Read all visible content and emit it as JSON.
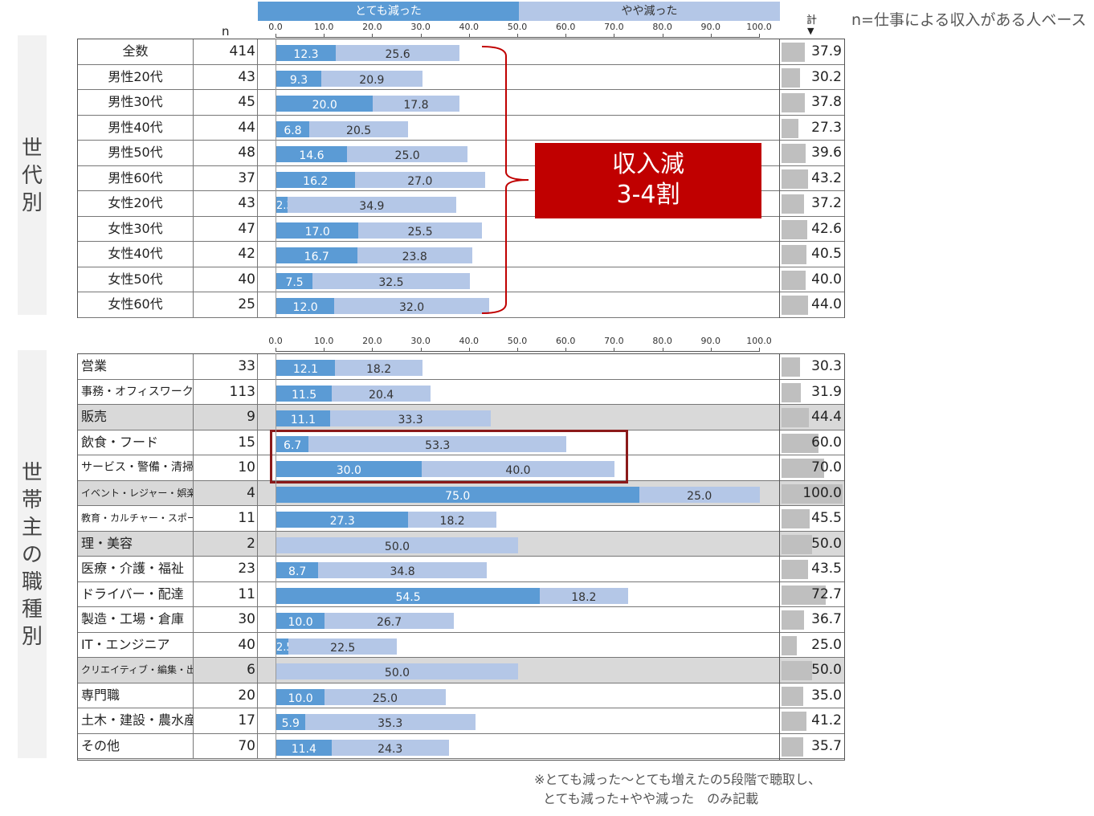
{
  "legend": {
    "series1": "とても減った",
    "series2": "やや減った",
    "color1": "#5b9bd5",
    "color2": "#b4c7e7"
  },
  "header": {
    "n_label": "n",
    "total_label": "計",
    "total_marker": "▼",
    "base_note": "n=仕事による収入がある人ベース"
  },
  "section1": {
    "label": "世代別"
  },
  "section2": {
    "label": "世帯主の職種別"
  },
  "callout": {
    "line1": "収入減",
    "line2": "3-4割"
  },
  "footnote": {
    "line1": "※とても減った～とても増えたの5段階で聴取し、",
    "line2": "とても減った+やや減った　のみ記載"
  },
  "chart_data": [
    {
      "type": "bar",
      "stacked": true,
      "orientation": "horizontal",
      "xlim": [
        0,
        100
      ],
      "xticks": [
        "0.0",
        "10.0",
        "20.0",
        "30.0",
        "40.0",
        "50.0",
        "60.0",
        "70.0",
        "80.0",
        "90.0",
        "100.0"
      ],
      "categories": [
        "全数",
        "男性20代",
        "男性30代",
        "男性40代",
        "男性50代",
        "男性60代",
        "女性20代",
        "女性30代",
        "女性40代",
        "女性50代",
        "女性60代"
      ],
      "n": [
        414,
        43,
        45,
        44,
        48,
        37,
        43,
        47,
        42,
        40,
        25
      ],
      "series": [
        {
          "name": "とても減った",
          "values": [
            12.3,
            9.3,
            20.0,
            6.8,
            14.6,
            16.2,
            2.3,
            17.0,
            16.7,
            7.5,
            12.0
          ]
        },
        {
          "name": "やや減った",
          "values": [
            25.6,
            20.9,
            17.8,
            20.5,
            25.0,
            27.0,
            34.9,
            25.5,
            23.8,
            32.5,
            32.0
          ]
        }
      ],
      "totals": [
        "37.9",
        "30.2",
        "37.8",
        "27.3",
        "39.6",
        "43.2",
        "37.2",
        "42.6",
        "40.5",
        "40.0",
        "44.0"
      ],
      "shaded": []
    },
    {
      "type": "bar",
      "stacked": true,
      "orientation": "horizontal",
      "xlim": [
        0,
        100
      ],
      "xticks": [
        "0.0",
        "10.0",
        "20.0",
        "30.0",
        "40.0",
        "50.0",
        "60.0",
        "70.0",
        "80.0",
        "90.0",
        "100.0"
      ],
      "categories": [
        "営業",
        "事務・オフィスワーク",
        "販売",
        "飲食・フード",
        "サービス・警備・清掃",
        "イベント・レジャー・娯楽",
        "教育・カルチャー・スポーツ",
        "理・美容",
        "医療・介護・福祉",
        "ドライバー・配達",
        "製造・工場・倉庫",
        "IT・エンジニア",
        "クリエイティブ・編集・出版",
        "専門職",
        "土木・建設・農水産",
        "その他"
      ],
      "n": [
        33,
        113,
        9,
        15,
        10,
        4,
        11,
        2,
        23,
        11,
        30,
        40,
        6,
        20,
        17,
        70
      ],
      "series": [
        {
          "name": "とても減った",
          "values": [
            12.1,
            11.5,
            11.1,
            6.7,
            30.0,
            75.0,
            27.3,
            0,
            8.7,
            54.5,
            10.0,
            2.5,
            0,
            10.0,
            5.9,
            11.4
          ]
        },
        {
          "name": "やや減った",
          "values": [
            18.2,
            20.4,
            33.3,
            53.3,
            40.0,
            25.0,
            18.2,
            50.0,
            34.8,
            18.2,
            26.7,
            22.5,
            50.0,
            25.0,
            35.3,
            24.3
          ]
        }
      ],
      "totals": [
        "30.3",
        "31.9",
        "44.4",
        "60.0",
        "70.0",
        "100.0",
        "45.5",
        "50.0",
        "43.5",
        "72.7",
        "36.7",
        "25.0",
        "50.0",
        "35.0",
        "41.2",
        "35.7"
      ],
      "shaded": [
        2,
        5,
        7,
        12
      ]
    }
  ]
}
